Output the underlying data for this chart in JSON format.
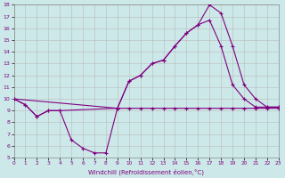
{
  "xlabel": "Windchill (Refroidissement éolien,°C)",
  "background_color": "#cce8e8",
  "line_color": "#800080",
  "grid_color": "#bbbbbb",
  "xlim": [
    0,
    23
  ],
  "ylim": [
    5,
    18
  ],
  "yticks": [
    5,
    6,
    7,
    8,
    9,
    10,
    11,
    12,
    13,
    14,
    15,
    16,
    17,
    18
  ],
  "xticks": [
    0,
    1,
    2,
    3,
    4,
    5,
    6,
    7,
    8,
    9,
    10,
    11,
    12,
    13,
    14,
    15,
    16,
    17,
    18,
    19,
    20,
    21,
    22,
    23
  ],
  "line1_x": [
    0,
    1,
    2,
    3,
    4,
    9,
    10,
    11,
    12,
    13,
    14,
    15,
    16,
    17,
    18,
    19,
    20,
    21,
    22,
    23
  ],
  "line1_y": [
    10,
    9.5,
    8.5,
    9.0,
    9.0,
    9.2,
    9.2,
    9.2,
    9.2,
    9.2,
    9.2,
    9.2,
    9.2,
    9.2,
    9.2,
    9.2,
    9.2,
    9.2,
    9.2,
    9.2
  ],
  "line2_x": [
    0,
    1,
    2,
    3,
    4,
    5,
    6,
    7,
    8,
    9,
    10,
    11,
    12,
    13,
    14,
    15,
    16,
    17,
    18,
    19,
    20,
    21,
    22,
    23
  ],
  "line2_y": [
    10,
    9.5,
    8.5,
    9.0,
    9.0,
    6.5,
    5.8,
    5.4,
    5.4,
    9.2,
    11.5,
    12.0,
    13.0,
    13.3,
    14.5,
    15.6,
    16.3,
    18.0,
    17.3,
    14.5,
    11.2,
    10.0,
    9.3,
    9.3
  ],
  "line3_x": [
    0,
    9,
    10,
    11,
    12,
    13,
    14,
    15,
    16,
    17,
    18,
    19,
    20,
    21,
    22,
    23
  ],
  "line3_y": [
    10,
    9.2,
    11.5,
    12.0,
    13.0,
    13.3,
    14.5,
    15.6,
    16.3,
    16.7,
    14.5,
    11.2,
    10.0,
    9.3,
    9.3,
    9.3
  ]
}
